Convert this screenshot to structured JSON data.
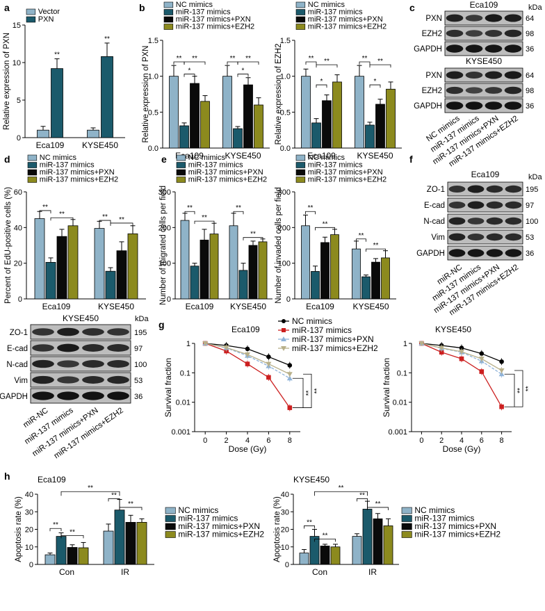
{
  "colors": {
    "nc": "#8fb3c8",
    "mir": "#1b5a6b",
    "pxn": "#0a0a0a",
    "ezh2": "#8c8a1e",
    "vector": "#8fb3c8",
    "pxn_a": "#1b5a6b"
  },
  "legend4": [
    "NC mimics",
    "miR-137 mimics",
    "miR-137 mimics+PXN",
    "miR-137 mimics+EZH2"
  ],
  "chart_data": [
    {
      "panel": "a",
      "type": "bar",
      "categories": [
        "Eca109",
        "KYSE450"
      ],
      "series": [
        {
          "name": "Vector",
          "values": [
            1,
            1
          ],
          "err": [
            0.5,
            0.3
          ]
        },
        {
          "name": "PXN",
          "values": [
            9.2,
            10.8
          ],
          "err": [
            1.3,
            1.8
          ]
        }
      ],
      "ylabel": "Relative expression of PXN",
      "ylim": [
        0,
        15
      ],
      "yticks": [
        "0",
        "5",
        "10",
        "15"
      ],
      "stars": [
        "**",
        "**"
      ]
    },
    {
      "panel": "b",
      "type": "bar",
      "categories": [
        "Eca109",
        "KYSE450"
      ],
      "series": [
        {
          "name": "NC mimics",
          "values": [
            1.0,
            1.0
          ],
          "err": [
            0.15,
            0.15
          ]
        },
        {
          "name": "miR-137 mimics",
          "values": [
            0.31,
            0.27
          ],
          "err": [
            0.04,
            0.03
          ]
        },
        {
          "name": "miR-137 mimics+PXN",
          "values": [
            0.9,
            0.88
          ],
          "err": [
            0.1,
            0.1
          ]
        },
        {
          "name": "miR-137 mimics+EZH2",
          "values": [
            0.65,
            0.6
          ],
          "err": [
            0.08,
            0.1
          ]
        }
      ],
      "ylabel": "Relative expression of PXN",
      "ylim": [
        0,
        1.5
      ],
      "yticks": [
        "0.0",
        "0.5",
        "1.0",
        "1.5"
      ],
      "brackets": [
        "**",
        "*",
        "**"
      ]
    },
    {
      "panel": "b2",
      "type": "bar",
      "categories": [
        "Eca109",
        "KYSE450"
      ],
      "series": [
        {
          "name": "NC mimics",
          "values": [
            1.0,
            1.0
          ],
          "err": [
            0.1,
            0.15
          ]
        },
        {
          "name": "miR-137 mimics",
          "values": [
            0.35,
            0.32
          ],
          "err": [
            0.06,
            0.04
          ]
        },
        {
          "name": "miR-137 mimics+PXN",
          "values": [
            0.66,
            0.61
          ],
          "err": [
            0.08,
            0.07
          ]
        },
        {
          "name": "miR-137 mimics+EZH2",
          "values": [
            0.92,
            0.82
          ],
          "err": [
            0.1,
            0.1
          ]
        }
      ],
      "ylabel": "Relative expression of EZH2",
      "ylim": [
        0,
        1.5
      ],
      "yticks": [
        "0.0",
        "0.5",
        "1.0",
        "1.5"
      ],
      "brackets": [
        "**",
        "*",
        "**"
      ]
    },
    {
      "panel": "d",
      "type": "bar",
      "categories": [
        "Eca109",
        "KYSE450"
      ],
      "series": [
        {
          "name": "NC mimics",
          "values": [
            45,
            39.5
          ],
          "err": [
            4,
            4
          ]
        },
        {
          "name": "miR-137 mimics",
          "values": [
            20.5,
            15.5
          ],
          "err": [
            2.5,
            2
          ]
        },
        {
          "name": "miR-137 mimics+PXN",
          "values": [
            35,
            27
          ],
          "err": [
            4,
            5
          ]
        },
        {
          "name": "miR-137 mimics+EZH2",
          "values": [
            41,
            36.5
          ],
          "err": [
            3.5,
            4.5
          ]
        }
      ],
      "ylabel": "Percent of EdU-positive cells (%)",
      "ylim": [
        0,
        60
      ],
      "yticks": [
        "0",
        "20",
        "40",
        "60"
      ],
      "brackets": [
        "**",
        "**"
      ]
    },
    {
      "panel": "e",
      "type": "bar",
      "categories": [
        "Eca109",
        "KYSE450"
      ],
      "series": [
        {
          "name": "NC mimics",
          "values": [
            220,
            205
          ],
          "err": [
            20,
            35
          ]
        },
        {
          "name": "miR-137 mimics",
          "values": [
            92,
            80
          ],
          "err": [
            8,
            20
          ]
        },
        {
          "name": "miR-137 mimics+PXN",
          "values": [
            165,
            150
          ],
          "err": [
            30,
            12
          ]
        },
        {
          "name": "miR-137 mimics+EZH2",
          "values": [
            182,
            160
          ],
          "err": [
            30,
            8
          ]
        }
      ],
      "ylabel": "Number of migrated cells per field",
      "ylim": [
        0,
        300
      ],
      "yticks": [
        "0",
        "100",
        "200",
        "300"
      ],
      "brackets": [
        "**",
        "**"
      ]
    },
    {
      "panel": "e2",
      "type": "bar",
      "categories": [
        "Eca109",
        "KYSE450"
      ],
      "series": [
        {
          "name": "NC mimics",
          "values": [
            205,
            140
          ],
          "err": [
            30,
            22
          ]
        },
        {
          "name": "miR-137 mimics",
          "values": [
            77,
            62
          ],
          "err": [
            15,
            5
          ]
        },
        {
          "name": "miR-137 mimics+PXN",
          "values": [
            158,
            103
          ],
          "err": [
            15,
            10
          ]
        },
        {
          "name": "miR-137 mimics+EZH2",
          "values": [
            180,
            115
          ],
          "err": [
            15,
            20
          ]
        }
      ],
      "ylabel": "Number of invaded cells per field",
      "ylim": [
        0,
        300
      ],
      "yticks": [
        "0",
        "100",
        "200",
        "300"
      ],
      "brackets": [
        "**",
        "**"
      ]
    },
    {
      "panel": "g",
      "type": "line",
      "title": "Eca109",
      "x": [
        0,
        2,
        4,
        6,
        8
      ],
      "series": [
        {
          "name": "NC mimics",
          "values": [
            1,
            0.85,
            0.65,
            0.35,
            0.18
          ]
        },
        {
          "name": "miR-137 mimics",
          "values": [
            1,
            0.55,
            0.2,
            0.07,
            0.0065
          ]
        },
        {
          "name": "miR-137 mimics+PXN",
          "values": [
            1,
            0.7,
            0.38,
            0.17,
            0.065
          ]
        },
        {
          "name": "miR-137 mimics+EZH2",
          "values": [
            1,
            0.72,
            0.42,
            0.2,
            0.09
          ]
        }
      ],
      "xlabel": "Dose (Gy)",
      "ylabel": "Survival fraction",
      "xticks": [
        "0",
        "2",
        "4",
        "6",
        "8"
      ],
      "yticks": [
        "0.001",
        "0.01",
        "0.1",
        "1"
      ],
      "yscale": "log",
      "stars": [
        "**",
        "**"
      ]
    },
    {
      "panel": "g2",
      "type": "line",
      "title": "KYSE450",
      "x": [
        0,
        2,
        4,
        6,
        8
      ],
      "series": [
        {
          "name": "NC mimics",
          "values": [
            1,
            0.85,
            0.7,
            0.45,
            0.24
          ]
        },
        {
          "name": "miR-137 mimics",
          "values": [
            1,
            0.5,
            0.3,
            0.11,
            0.007
          ]
        },
        {
          "name": "miR-137 mimics+PXN",
          "values": [
            1,
            0.68,
            0.5,
            0.25,
            0.09
          ]
        },
        {
          "name": "miR-137 mimics+EZH2",
          "values": [
            1,
            0.7,
            0.52,
            0.3,
            0.12
          ]
        }
      ],
      "xlabel": "Dose (Gy)",
      "ylabel": "Survival fraction",
      "xticks": [
        "0",
        "2",
        "4",
        "6",
        "8"
      ],
      "yticks": [
        "0.001",
        "0.01",
        "0.1",
        "1"
      ],
      "yscale": "log",
      "stars": [
        "**",
        "**"
      ]
    },
    {
      "panel": "h",
      "type": "bar",
      "title": "Eca109",
      "categories": [
        "Con",
        "IR"
      ],
      "series": [
        {
          "name": "NC mimics",
          "values": [
            5.5,
            19
          ],
          "err": [
            1,
            4
          ]
        },
        {
          "name": "miR-137 mimics",
          "values": [
            16,
            31
          ],
          "err": [
            2,
            6
          ]
        },
        {
          "name": "miR-137 mimics+PXN",
          "values": [
            9.7,
            24
          ],
          "err": [
            1.5,
            4
          ]
        },
        {
          "name": "miR-137 mimics+EZH2",
          "values": [
            9.5,
            24
          ],
          "err": [
            3,
            2
          ]
        }
      ],
      "ylabel": "Apoptosis rate (%)",
      "ylim": [
        0,
        40
      ],
      "yticks": [
        "0",
        "10",
        "20",
        "30",
        "40"
      ],
      "brackets": [
        "**",
        "**",
        "**",
        "**",
        "**"
      ]
    },
    {
      "panel": "h2",
      "type": "bar",
      "title": "KYSE450",
      "categories": [
        "Con",
        "IR"
      ],
      "series": [
        {
          "name": "NC mimics",
          "values": [
            6.5,
            16
          ],
          "err": [
            2,
            1.5
          ]
        },
        {
          "name": "miR-137 mimics",
          "values": [
            16,
            31.5
          ],
          "err": [
            4,
            4.5
          ]
        },
        {
          "name": "miR-137 mimics+PXN",
          "values": [
            10.5,
            26
          ],
          "err": [
            1,
            3
          ]
        },
        {
          "name": "miR-137 mimics+EZH2",
          "values": [
            10,
            22
          ],
          "err": [
            1.5,
            4
          ]
        }
      ],
      "ylabel": "Apoptosis rate (%)",
      "ylim": [
        0,
        40
      ],
      "yticks": [
        "0",
        "10",
        "20",
        "30",
        "40"
      ],
      "brackets": [
        "**",
        "**",
        "**",
        "**",
        "**"
      ]
    }
  ],
  "legend_a": [
    "Vector",
    "PXN"
  ],
  "blots": {
    "c": {
      "cell1": "Eca109",
      "cell2": "KYSE450",
      "kda": "kDa",
      "rows": [
        {
          "label": "PXN",
          "kda": "64"
        },
        {
          "label": "EZH2",
          "kda": "98"
        },
        {
          "label": "GAPDH",
          "kda": "36"
        }
      ],
      "lanes": [
        "NC mimics",
        "miR-137 mimics",
        "miR-137 mimics+PXN",
        "miR-137 mimics+EZH2"
      ]
    },
    "f": {
      "title": "Eca109",
      "kda": "kDa",
      "rows": [
        {
          "label": "ZO-1",
          "kda": "195"
        },
        {
          "label": "E-cad",
          "kda": "97"
        },
        {
          "label": "N-cad",
          "kda": "100"
        },
        {
          "label": "Vim",
          "kda": "53"
        },
        {
          "label": "GAPDH",
          "kda": "36"
        }
      ],
      "lanes": [
        "miR-NC",
        "miR-137 mimics",
        "miR-137 mimics+PXN",
        "miR-137 mimics+EZH2"
      ]
    },
    "f2": {
      "title": "KYSE450",
      "kda": "kDa",
      "rows": [
        {
          "label": "ZO-1",
          "kda": "195"
        },
        {
          "label": "E-cad",
          "kda": "97"
        },
        {
          "label": "N-cad",
          "kda": "100"
        },
        {
          "label": "Vim",
          "kda": "53"
        },
        {
          "label": "GAPDH",
          "kda": "36"
        }
      ],
      "lanes": [
        "miR-NC",
        "miR-137 mimics",
        "miR-137 mimics+PXN",
        "miR-137 mimics+EZH2"
      ]
    }
  },
  "letters": {
    "a": "a",
    "b": "b",
    "c": "c",
    "d": "d",
    "e": "e",
    "f": "f",
    "g": "g",
    "h": "h"
  }
}
